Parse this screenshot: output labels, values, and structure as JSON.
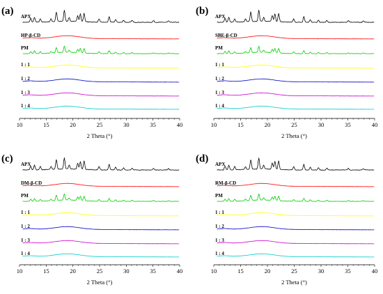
{
  "chart_data": [
    {
      "type": "line",
      "panel_label": "(a)",
      "xlabel": "2 Theta (°)",
      "xlim": [
        10,
        40
      ],
      "xticks": [
        10,
        15,
        20,
        25,
        30,
        35,
        40
      ],
      "series": [
        {
          "name": "APX",
          "color": "#000000",
          "kind": "crystalline"
        },
        {
          "name": "HP-β-CD",
          "color": "#ff0000",
          "kind": "amorphous"
        },
        {
          "name": "PM",
          "color": "#00cc00",
          "kind": "mixture"
        },
        {
          "name": "1 : 1",
          "color": "#ffff00",
          "kind": "amorphous"
        },
        {
          "name": "1 : 2",
          "color": "#0000cc",
          "kind": "amorphous"
        },
        {
          "name": "1 : 3",
          "color": "#cc00cc",
          "kind": "amorphous"
        },
        {
          "name": "1 : 4",
          "color": "#00cccc",
          "kind": "amorphous"
        }
      ]
    },
    {
      "type": "line",
      "panel_label": "(b)",
      "xlabel": "2 Theta (°)",
      "xlim": [
        10,
        40
      ],
      "xticks": [
        10,
        15,
        20,
        25,
        30,
        35,
        40
      ],
      "series": [
        {
          "name": "APX",
          "color": "#000000",
          "kind": "crystalline"
        },
        {
          "name": "SBE-β-CD",
          "color": "#ff0000",
          "kind": "amorphous"
        },
        {
          "name": "PM",
          "color": "#00cc00",
          "kind": "mixture"
        },
        {
          "name": "1 : 1",
          "color": "#ffff00",
          "kind": "amorphous"
        },
        {
          "name": "1 : 2",
          "color": "#0000cc",
          "kind": "amorphous"
        },
        {
          "name": "1 : 3",
          "color": "#cc00cc",
          "kind": "amorphous"
        },
        {
          "name": "1 : 4",
          "color": "#00cccc",
          "kind": "amorphous"
        }
      ]
    },
    {
      "type": "line",
      "panel_label": "(c)",
      "xlabel": "2 Theta (°)",
      "xlim": [
        10,
        40
      ],
      "xticks": [
        10,
        15,
        20,
        25,
        30,
        35,
        40
      ],
      "series": [
        {
          "name": "APX",
          "color": "#000000",
          "kind": "crystalline"
        },
        {
          "name": "DM-β-CD",
          "color": "#ff0000",
          "kind": "amorphous"
        },
        {
          "name": "PM",
          "color": "#00cc00",
          "kind": "mixture"
        },
        {
          "name": "1 : 1",
          "color": "#ffff00",
          "kind": "amorphous"
        },
        {
          "name": "1 : 2",
          "color": "#0000cc",
          "kind": "amorphous"
        },
        {
          "name": "1 : 3",
          "color": "#cc00cc",
          "kind": "amorphous"
        },
        {
          "name": "1 : 4",
          "color": "#00cccc",
          "kind": "amorphous"
        }
      ]
    },
    {
      "type": "line",
      "panel_label": "(d)",
      "xlabel": "2 Theta (°)",
      "xlim": [
        10,
        40
      ],
      "xticks": [
        10,
        15,
        20,
        25,
        30,
        35,
        40
      ],
      "series": [
        {
          "name": "APX",
          "color": "#000000",
          "kind": "crystalline"
        },
        {
          "name": "RM-β-CD",
          "color": "#ff0000",
          "kind": "amorphous"
        },
        {
          "name": "PM",
          "color": "#00cc00",
          "kind": "mixture"
        },
        {
          "name": "1 : 1",
          "color": "#ffff00",
          "kind": "amorphous"
        },
        {
          "name": "1 : 2",
          "color": "#0000cc",
          "kind": "amorphous"
        },
        {
          "name": "1 : 3",
          "color": "#cc00cc",
          "kind": "amorphous"
        },
        {
          "name": "1 : 4",
          "color": "#00cccc",
          "kind": "amorphous"
        }
      ]
    }
  ],
  "apx_peaks_2theta": [
    12.1,
    12.8,
    13.9,
    15.9,
    16.9,
    18.4,
    19.3,
    20.9,
    21.4,
    22.1,
    24.9,
    26.8,
    28.0,
    29.5,
    31.1,
    35.1,
    37.9
  ],
  "apx_peak_intensity": [
    0.35,
    0.45,
    0.3,
    0.25,
    0.85,
    1.0,
    0.35,
    0.55,
    0.7,
    0.75,
    0.3,
    0.5,
    0.25,
    0.2,
    0.18,
    0.15,
    0.12
  ],
  "amorphous_halo_center_2theta": 19
}
